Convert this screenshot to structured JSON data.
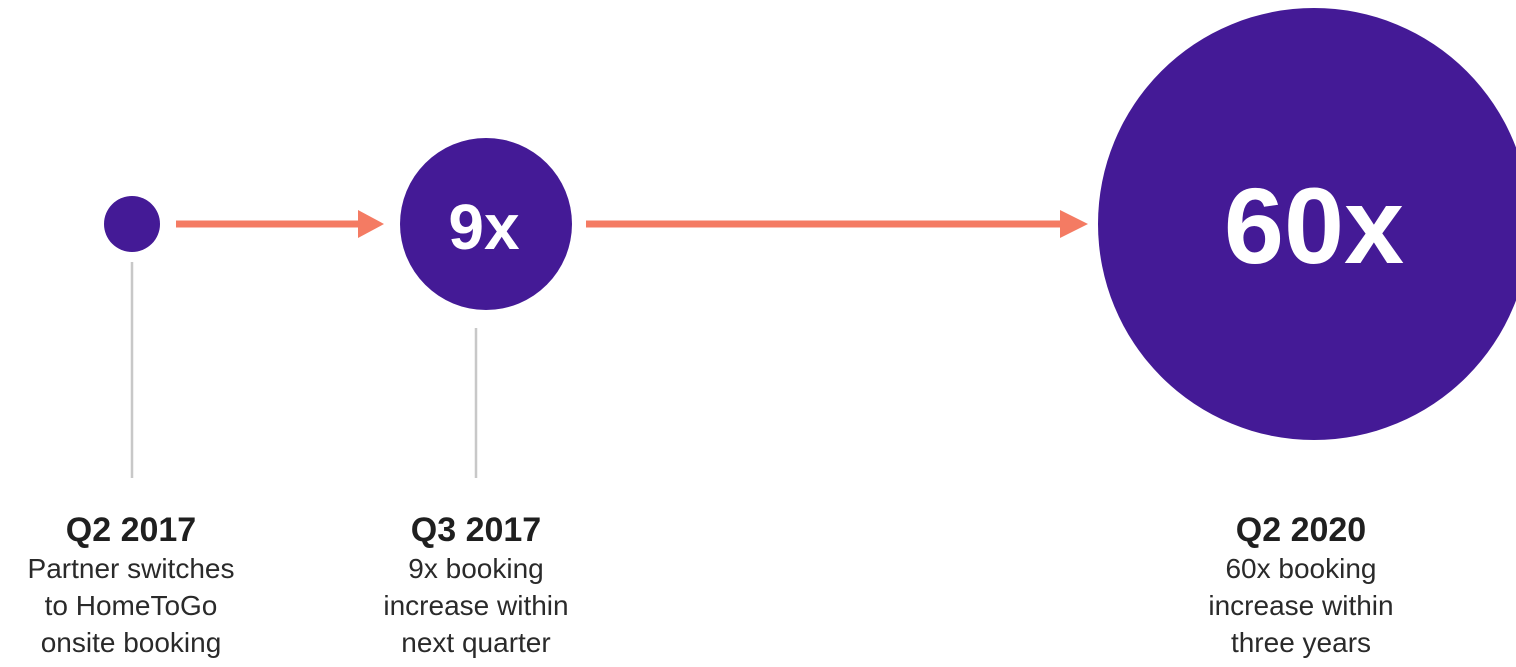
{
  "colors": {
    "circle": "#441a96",
    "arrow": "#f47b63",
    "connector": "#c8c8c8",
    "circle_text": "#ffffff"
  },
  "milestones": [
    {
      "period": "Q2 2017",
      "multiplier": "",
      "description_lines": [
        "Partner switches",
        "to HomeToGo",
        "onsite booking"
      ]
    },
    {
      "period": "Q3 2017",
      "multiplier": "9x",
      "description_lines": [
        "9x booking",
        "increase within",
        "next quarter"
      ]
    },
    {
      "period": "Q2 2020",
      "multiplier": "60x",
      "description_lines": [
        "60x booking",
        "increase within",
        "three years"
      ]
    }
  ]
}
